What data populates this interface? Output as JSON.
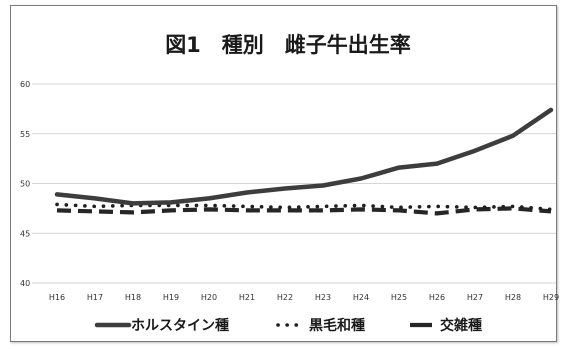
{
  "chart_data": {
    "type": "line",
    "title": "図1　種別　雌子牛出生率",
    "xlabel": "",
    "ylabel": "",
    "categories": [
      "H16",
      "H17",
      "H18",
      "H19",
      "H20",
      "H21",
      "H22",
      "H23",
      "H24",
      "H25",
      "H26",
      "H27",
      "H28",
      "H29"
    ],
    "ylim": [
      40,
      60
    ],
    "yticks": [
      "40",
      "45",
      "50",
      "55",
      "60"
    ],
    "grid": true,
    "legend_position": "bottom",
    "series": [
      {
        "name": "ホルスタイン種",
        "style": "solid",
        "color": "#3d3d3d",
        "values": [
          48.9,
          48.5,
          48.0,
          48.1,
          48.5,
          49.1,
          49.5,
          49.8,
          50.5,
          51.6,
          52.0,
          53.3,
          54.8,
          57.4
        ]
      },
      {
        "name": "黒毛和種",
        "style": "dotted",
        "color": "#1f1f1f",
        "values": [
          47.9,
          47.7,
          47.8,
          47.8,
          47.8,
          47.7,
          47.6,
          47.7,
          47.8,
          47.6,
          47.7,
          47.6,
          47.7,
          47.4
        ]
      },
      {
        "name": "交雑種",
        "style": "dashed",
        "color": "#262626",
        "values": [
          47.3,
          47.2,
          47.1,
          47.3,
          47.4,
          47.3,
          47.3,
          47.3,
          47.4,
          47.3,
          47.0,
          47.4,
          47.5,
          47.2
        ]
      }
    ]
  }
}
